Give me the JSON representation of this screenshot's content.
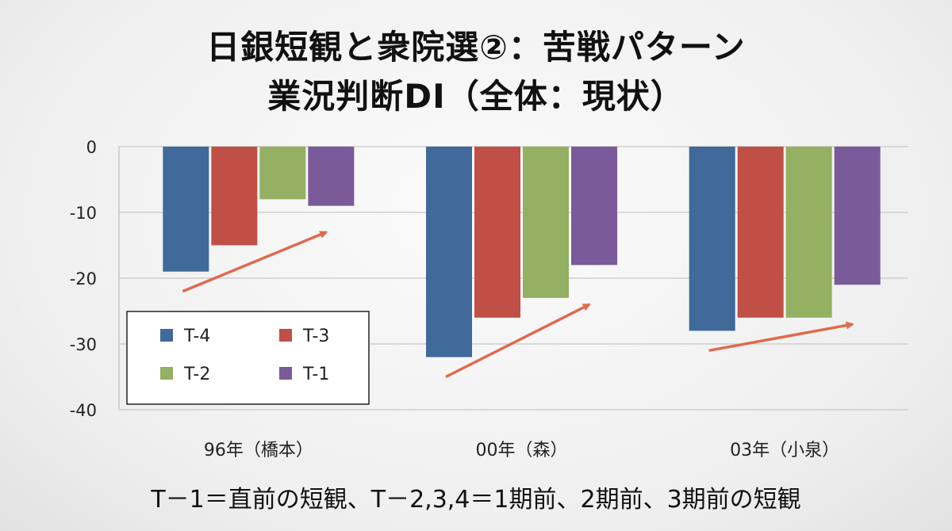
{
  "title_line1": "日銀短観と衆院選②：苦戦パターン",
  "title_line2": "業況判断DI（全体：現状）",
  "footnote": "T－1＝直前の短観、T－2,3,4＝1期前、2期前、3期前の短観",
  "chart_data": {
    "type": "bar",
    "categories": [
      "96年（橋本）",
      "00年（森）",
      "03年（小泉）"
    ],
    "series": [
      {
        "name": "T-4",
        "color": "#3f6a99",
        "values": [
          -19,
          -32,
          -28
        ]
      },
      {
        "name": "T-3",
        "color": "#c04f45",
        "values": [
          -15,
          -26,
          -26
        ]
      },
      {
        "name": "T-2",
        "color": "#93b063",
        "values": [
          -8,
          -23,
          -26
        ]
      },
      {
        "name": "T-1",
        "color": "#7a5a98",
        "values": [
          -9,
          -18,
          -21
        ]
      }
    ],
    "ylim": [
      -40,
      0
    ],
    "yticks": [
      0,
      -10,
      -20,
      -30,
      -40
    ],
    "yticklabels": [
      "0",
      "-10",
      "-20",
      "-30",
      "-40"
    ],
    "grid": true,
    "legend_position": "lower-left",
    "annotations": [
      {
        "type": "arrow",
        "category": "96年（橋本）",
        "from_value": -22,
        "to_value": -13,
        "color": "#e06a4e"
      },
      {
        "type": "arrow",
        "category": "00年（森）",
        "from_value": -35,
        "to_value": -24,
        "color": "#e06a4e"
      },
      {
        "type": "arrow",
        "category": "03年（小泉）",
        "from_value": -31,
        "to_value": -27,
        "color": "#e06a4e"
      }
    ]
  }
}
